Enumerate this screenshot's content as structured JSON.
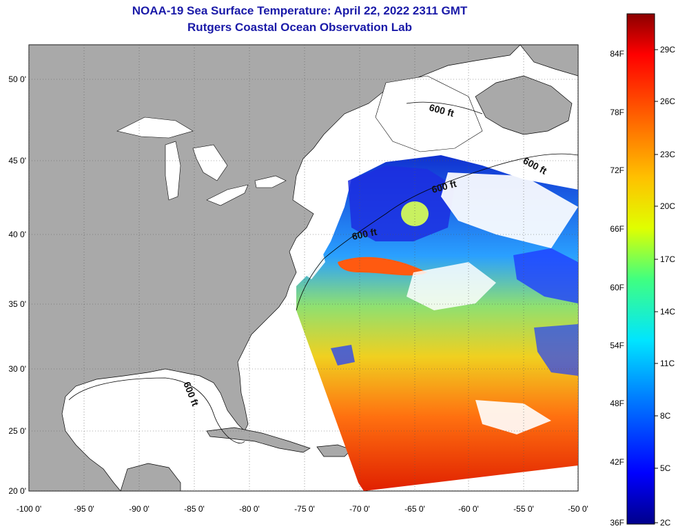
{
  "title": "NOAA-19 Sea Surface Temperature:  April 22, 2022 2311 GMT",
  "subtitle": "Rutgers Coastal Ocean Observation Lab",
  "lat_labels": [
    "50 0'",
    "45 0'",
    "40 0'",
    "35 0'",
    "30 0'",
    "25 0'",
    "20 0'"
  ],
  "lon_labels": [
    "-100 0'",
    "-95 0'",
    "-90 0'",
    "-85 0'",
    "-80 0'",
    "-75 0'",
    "-70 0'",
    "-65 0'",
    "-60 0'",
    "-55 0'",
    "-50 0'"
  ],
  "isobath_labels": [
    "600 ft",
    "600 ft",
    "600 ft",
    "600 ft",
    "600 ft"
  ],
  "colorbar": {
    "f_labels": [
      "84F",
      "78F",
      "72F",
      "66F",
      "60F",
      "54F",
      "48F",
      "42F",
      "36F"
    ],
    "c_labels": [
      "29C",
      "26C",
      "23C",
      "20C",
      "17C",
      "14C",
      "11C",
      "8C",
      "5C",
      "2C"
    ]
  },
  "colors": {
    "land": "#a9a9a9",
    "cloud": "#ffffff",
    "title": "#1a1aa8",
    "scale": [
      "#00008b",
      "#0000ff",
      "#0080ff",
      "#00e5ff",
      "#40ff80",
      "#e0ff00",
      "#ffc000",
      "#ff6000",
      "#ff0000",
      "#8b0000"
    ]
  }
}
